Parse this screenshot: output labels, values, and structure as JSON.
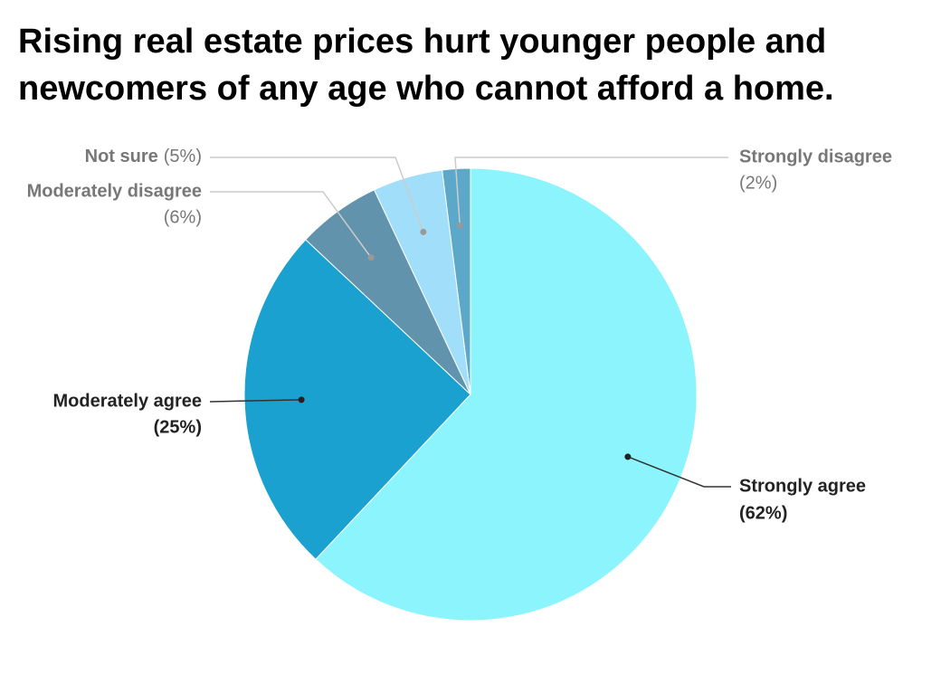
{
  "chart_data": {
    "type": "pie",
    "title": [
      "Rising real estate prices hurt younger people and",
      "newcomers of any age who cannot afford a home."
    ],
    "categories": [
      "Strongly agree",
      "Moderately agree",
      "Moderately disagree",
      "Not sure",
      "Strongly disagree"
    ],
    "values": [
      62,
      25,
      6,
      5,
      2
    ],
    "value_labels": [
      "(62%)",
      "(25%)",
      "(6%)",
      "(5%)",
      "(2%)"
    ],
    "colors": [
      "#8cf4fc",
      "#1aa1cf",
      "#6193ad",
      "#a0defa",
      "#5ba8c8"
    ]
  }
}
